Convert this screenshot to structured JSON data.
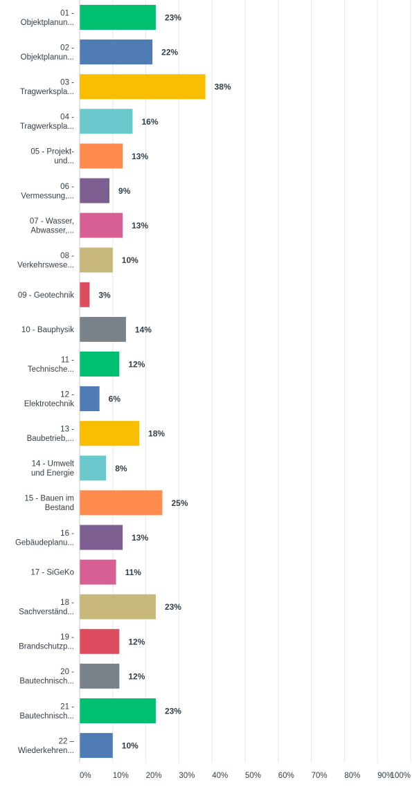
{
  "chart_data": {
    "type": "bar",
    "orientation": "horizontal",
    "categories": [
      [
        "01 -",
        "Objektplanun..."
      ],
      [
        "02 -",
        "Objektplanun..."
      ],
      [
        "03 -",
        "Tragwerkspla..."
      ],
      [
        "04 -",
        "Tragwerkspla..."
      ],
      [
        "05 - Projekt-",
        "und..."
      ],
      [
        "06 -",
        "Vermessung,..."
      ],
      [
        "07 - Wasser,",
        "Abwasser,..."
      ],
      [
        "08 -",
        "Verkehrswese..."
      ],
      [
        "09 - Geotechnik"
      ],
      [
        "10 - Bauphysik"
      ],
      [
        "11 -",
        "Technische..."
      ],
      [
        "12 -",
        "Elektrotechnik"
      ],
      [
        "13 -",
        "Baubetrieb,..."
      ],
      [
        "14 - Umwelt",
        "und Energie"
      ],
      [
        "15 - Bauen im",
        "Bestand"
      ],
      [
        "16 -",
        "Gebäudeplanu..."
      ],
      [
        "17 - SiGeKo"
      ],
      [
        "18 -",
        "Sachverständ..."
      ],
      [
        "19 -",
        "Brandschutzp..."
      ],
      [
        "20 -",
        "Bautechnisch..."
      ],
      [
        "21 -",
        "Bautechnisch..."
      ],
      [
        "22 –",
        "Wiederkehren..."
      ]
    ],
    "values": [
      23,
      22,
      38,
      16,
      13,
      9,
      13,
      10,
      3,
      14,
      12,
      6,
      18,
      8,
      25,
      13,
      11,
      23,
      12,
      12,
      23,
      10
    ],
    "value_labels": [
      "23%",
      "22%",
      "38%",
      "16%",
      "13%",
      "9%",
      "13%",
      "10%",
      "3%",
      "14%",
      "12%",
      "6%",
      "18%",
      "8%",
      "25%",
      "13%",
      "11%",
      "23%",
      "12%",
      "12%",
      "23%",
      "10%"
    ],
    "xlim": [
      0,
      100
    ],
    "x_ticks": [
      0,
      10,
      20,
      30,
      40,
      50,
      60,
      70,
      80,
      90,
      100
    ],
    "x_tick_labels": [
      "0%",
      "10%",
      "20%",
      "30%",
      "40%",
      "50%",
      "60%",
      "70%",
      "80%",
      "90%",
      "100%"
    ],
    "colors": [
      "#00bf6f",
      "#507cb6",
      "#f9be00",
      "#6bc8cd",
      "#ff8b4f",
      "#7d5e90",
      "#d65f93",
      "#c7b879",
      "#dd4c5f",
      "#798189"
    ],
    "grid": true,
    "legend": "none",
    "title": "",
    "xlabel": "",
    "ylabel": ""
  }
}
